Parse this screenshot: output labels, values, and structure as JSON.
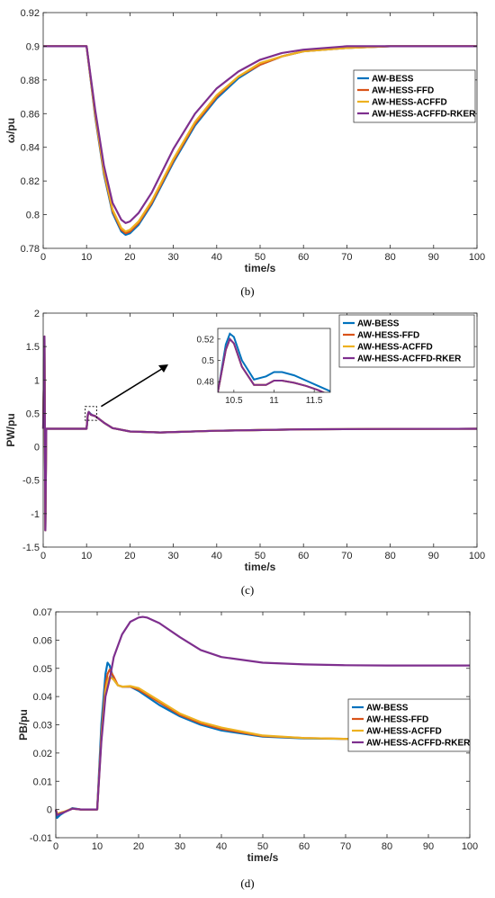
{
  "colors": {
    "AW-BESS": "#0072BD",
    "AW-HESS-FFD": "#D95319",
    "AW-HESS-ACFFD": "#EDB120",
    "AW-HESS-ACFFD-RKER": "#7E2F8E"
  },
  "chart_data": [
    {
      "type": "line",
      "caption": "(b)",
      "xlabel": "time/s",
      "ylabel": "ω/pu",
      "xlim": [
        0,
        100
      ],
      "ylim": [
        0.78,
        0.92
      ],
      "xticks": [
        "0",
        "10",
        "20",
        "30",
        "40",
        "50",
        "60",
        "70",
        "80",
        "90",
        "100"
      ],
      "yticks": [
        "0.78",
        "0.8",
        "0.82",
        "0.84",
        "0.86",
        "0.88",
        "0.9",
        "0.92"
      ],
      "legend_position": "right",
      "series": [
        {
          "name": "AW-BESS",
          "x": [
            0,
            10,
            12,
            14,
            16,
            18,
            19,
            20,
            22,
            25,
            30,
            35,
            40,
            45,
            50,
            55,
            60,
            70,
            80,
            90,
            100
          ],
          "y": [
            0.9,
            0.9,
            0.858,
            0.824,
            0.801,
            0.79,
            0.788,
            0.789,
            0.794,
            0.806,
            0.831,
            0.853,
            0.869,
            0.881,
            0.889,
            0.894,
            0.897,
            0.899,
            0.9,
            0.9,
            0.9
          ]
        },
        {
          "name": "AW-HESS-FFD",
          "x": [
            0,
            10,
            12,
            14,
            16,
            18,
            19,
            20,
            22,
            25,
            30,
            35,
            40,
            45,
            50,
            55,
            60,
            70,
            80,
            90,
            100
          ],
          "y": [
            0.9,
            0.9,
            0.859,
            0.825,
            0.802,
            0.791,
            0.789,
            0.79,
            0.795,
            0.807,
            0.832,
            0.854,
            0.87,
            0.882,
            0.889,
            0.894,
            0.897,
            0.899,
            0.9,
            0.9,
            0.9
          ]
        },
        {
          "name": "AW-HESS-ACFFD",
          "x": [
            0,
            10,
            12,
            14,
            16,
            18,
            19,
            20,
            22,
            25,
            30,
            35,
            40,
            45,
            50,
            55,
            60,
            70,
            80,
            90,
            100
          ],
          "y": [
            0.9,
            0.9,
            0.86,
            0.826,
            0.803,
            0.792,
            0.79,
            0.791,
            0.796,
            0.808,
            0.833,
            0.855,
            0.871,
            0.882,
            0.89,
            0.894,
            0.897,
            0.899,
            0.9,
            0.9,
            0.9
          ]
        },
        {
          "name": "AW-HESS-ACFFD-RKER",
          "x": [
            0,
            10,
            12,
            14,
            16,
            18,
            19,
            20,
            22,
            25,
            30,
            35,
            40,
            45,
            50,
            55,
            60,
            70,
            80,
            90,
            100
          ],
          "y": [
            0.9,
            0.9,
            0.862,
            0.829,
            0.807,
            0.797,
            0.795,
            0.796,
            0.801,
            0.813,
            0.839,
            0.86,
            0.875,
            0.885,
            0.892,
            0.896,
            0.898,
            0.9,
            0.9,
            0.9,
            0.9
          ]
        }
      ]
    },
    {
      "type": "line",
      "caption": "(c)",
      "xlabel": "time/s",
      "ylabel": "PW/pu",
      "xlim": [
        0,
        100
      ],
      "ylim": [
        -1.5,
        2
      ],
      "xticks": [
        "0",
        "10",
        "20",
        "30",
        "40",
        "50",
        "60",
        "70",
        "80",
        "90",
        "100"
      ],
      "yticks": [
        "-1.5",
        "-1",
        "-0.5",
        "0",
        "0.5",
        "1",
        "1.5",
        "2"
      ],
      "legend_position": "top-right",
      "series": [
        {
          "name": "AW-BESS",
          "x": [
            0,
            0.3,
            0.5,
            0.7,
            1,
            10,
            10.3,
            10.5,
            11,
            11.5,
            12,
            14,
            16,
            20,
            27,
            40,
            60,
            80,
            100
          ],
          "y": [
            0.27,
            1.65,
            -1.25,
            0.27,
            0.27,
            0.27,
            0.48,
            0.525,
            0.49,
            0.47,
            0.46,
            0.36,
            0.28,
            0.23,
            0.215,
            0.24,
            0.262,
            0.268,
            0.27
          ]
        },
        {
          "name": "AW-HESS-FFD",
          "x": [
            0,
            0.3,
            0.5,
            0.7,
            1,
            10,
            10.3,
            10.5,
            11,
            11.5,
            12,
            14,
            16,
            20,
            27,
            40,
            60,
            80,
            100
          ],
          "y": [
            0.27,
            1.65,
            -1.25,
            0.27,
            0.27,
            0.27,
            0.48,
            0.52,
            0.48,
            0.47,
            0.46,
            0.36,
            0.28,
            0.23,
            0.215,
            0.24,
            0.262,
            0.268,
            0.27
          ]
        },
        {
          "name": "AW-HESS-ACFFD",
          "x": [
            0,
            0.3,
            0.5,
            0.7,
            1,
            10,
            10.3,
            10.5,
            11,
            11.5,
            12,
            14,
            16,
            20,
            27,
            40,
            60,
            80,
            100
          ],
          "y": [
            0.27,
            1.65,
            -1.25,
            0.27,
            0.27,
            0.27,
            0.48,
            0.52,
            0.48,
            0.47,
            0.46,
            0.36,
            0.28,
            0.23,
            0.215,
            0.24,
            0.262,
            0.268,
            0.27
          ]
        },
        {
          "name": "AW-HESS-ACFFD-RKER",
          "x": [
            0,
            0.3,
            0.5,
            0.7,
            1,
            10,
            10.3,
            10.5,
            11,
            11.5,
            12,
            14,
            16,
            20,
            27,
            40,
            60,
            80,
            100
          ],
          "y": [
            0.27,
            1.65,
            -1.25,
            0.27,
            0.27,
            0.27,
            0.48,
            0.52,
            0.48,
            0.47,
            0.46,
            0.36,
            0.28,
            0.23,
            0.215,
            0.24,
            0.262,
            0.268,
            0.27
          ]
        }
      ],
      "inset": {
        "xlim": [
          10.3,
          11.7
        ],
        "ylim": [
          0.47,
          0.53
        ],
        "xticks": [
          "10.5",
          "11",
          "11.5"
        ],
        "yticks": [
          "0.48",
          "0.5",
          "0.52"
        ],
        "series": [
          {
            "name": "AW-BESS",
            "x": [
              10.3,
              10.4,
              10.45,
              10.5,
              10.6,
              10.75,
              10.9,
              11,
              11.1,
              11.25,
              11.4,
              11.55,
              11.7
            ],
            "y": [
              0.47,
              0.515,
              0.525,
              0.522,
              0.5,
              0.482,
              0.485,
              0.489,
              0.489,
              0.486,
              0.481,
              0.476,
              0.471
            ]
          },
          {
            "name": "AW-HESS-FFD",
            "x": [
              10.3,
              10.4,
              10.45,
              10.5,
              10.6,
              10.75,
              10.9,
              11,
              11.1,
              11.25,
              11.4,
              11.55,
              11.7
            ],
            "y": [
              0.47,
              0.51,
              0.52,
              0.516,
              0.494,
              0.477,
              0.477,
              0.481,
              0.481,
              0.479,
              0.476,
              0.472,
              0.467
            ]
          },
          {
            "name": "AW-HESS-ACFFD",
            "x": [
              10.3,
              10.4,
              10.45,
              10.5,
              10.6,
              10.75,
              10.9,
              11,
              11.1,
              11.25,
              11.4,
              11.55,
              11.7
            ],
            "y": [
              0.47,
              0.51,
              0.52,
              0.516,
              0.494,
              0.477,
              0.477,
              0.481,
              0.481,
              0.479,
              0.476,
              0.472,
              0.467
            ]
          },
          {
            "name": "AW-HESS-ACFFD-RKER",
            "x": [
              10.3,
              10.4,
              10.45,
              10.5,
              10.6,
              10.75,
              10.9,
              11,
              11.1,
              11.25,
              11.4,
              11.55,
              11.7
            ],
            "y": [
              0.47,
              0.51,
              0.52,
              0.516,
              0.494,
              0.477,
              0.477,
              0.481,
              0.481,
              0.479,
              0.476,
              0.472,
              0.467
            ]
          }
        ]
      }
    },
    {
      "type": "line",
      "caption": "(d)",
      "xlabel": "time/s",
      "ylabel": "PB/pu",
      "xlim": [
        0,
        100
      ],
      "ylim": [
        -0.01,
        0.07
      ],
      "xticks": [
        "0",
        "10",
        "20",
        "30",
        "40",
        "50",
        "60",
        "70",
        "80",
        "90",
        "100"
      ],
      "yticks": [
        "-0.01",
        "0",
        "0.01",
        "0.02",
        "0.03",
        "0.04",
        "0.05",
        "0.06",
        "0.07"
      ],
      "legend_position": "center-right",
      "series": [
        {
          "name": "AW-BESS",
          "x": [
            0,
            0.3,
            1,
            2,
            4,
            6,
            8,
            10,
            11,
            12,
            12.5,
            13,
            14,
            15,
            16,
            18,
            20,
            25,
            30,
            35,
            40,
            50,
            60,
            70,
            80,
            90,
            100
          ],
          "y": [
            0,
            -0.003,
            -0.002,
            -0.001,
            0.0005,
            0,
            0,
            0,
            0.03,
            0.048,
            0.052,
            0.051,
            0.046,
            0.044,
            0.0435,
            0.0435,
            0.042,
            0.037,
            0.033,
            0.03,
            0.028,
            0.0258,
            0.0252,
            0.025,
            0.025,
            0.025,
            0.025
          ]
        },
        {
          "name": "AW-HESS-FFD",
          "x": [
            0,
            0.3,
            1,
            2,
            4,
            6,
            8,
            10,
            11,
            12,
            12.5,
            13,
            14,
            15,
            16,
            18,
            20,
            25,
            30,
            35,
            40,
            50,
            60,
            70,
            80,
            90,
            100
          ],
          "y": [
            0,
            -0.0015,
            -0.0012,
            -0.0008,
            0.0003,
            0,
            0,
            0,
            0.026,
            0.044,
            0.048,
            0.0495,
            0.047,
            0.044,
            0.0435,
            0.0435,
            0.0425,
            0.038,
            0.0335,
            0.0305,
            0.0285,
            0.026,
            0.0253,
            0.025,
            0.025,
            0.025,
            0.025
          ]
        },
        {
          "name": "AW-HESS-ACFFD",
          "x": [
            0,
            0.3,
            1,
            2,
            4,
            6,
            8,
            10,
            11,
            12,
            12.5,
            13,
            14,
            15,
            16,
            18,
            20,
            25,
            30,
            35,
            40,
            50,
            60,
            70,
            80,
            90,
            100
          ],
          "y": [
            0,
            -0.0015,
            -0.0012,
            -0.0008,
            0.0003,
            0,
            0,
            0,
            0.025,
            0.042,
            0.0455,
            0.047,
            0.046,
            0.044,
            0.0435,
            0.0437,
            0.043,
            0.0385,
            0.034,
            0.031,
            0.029,
            0.0262,
            0.0253,
            0.025,
            0.025,
            0.025,
            0.025
          ]
        },
        {
          "name": "AW-HESS-ACFFD-RKER",
          "x": [
            0,
            0.3,
            1,
            2,
            4,
            6,
            8,
            10,
            11,
            12,
            13,
            14,
            15,
            16,
            18,
            20,
            21,
            22,
            25,
            30,
            35,
            40,
            50,
            60,
            70,
            80,
            90,
            100
          ],
          "y": [
            0,
            -0.002,
            -0.0015,
            -0.001,
            0.0003,
            0,
            0,
            0,
            0.024,
            0.04,
            0.046,
            0.054,
            0.058,
            0.062,
            0.0665,
            0.068,
            0.0682,
            0.068,
            0.066,
            0.061,
            0.0565,
            0.054,
            0.052,
            0.0514,
            0.0511,
            0.051,
            0.051,
            0.051
          ]
        }
      ]
    }
  ]
}
